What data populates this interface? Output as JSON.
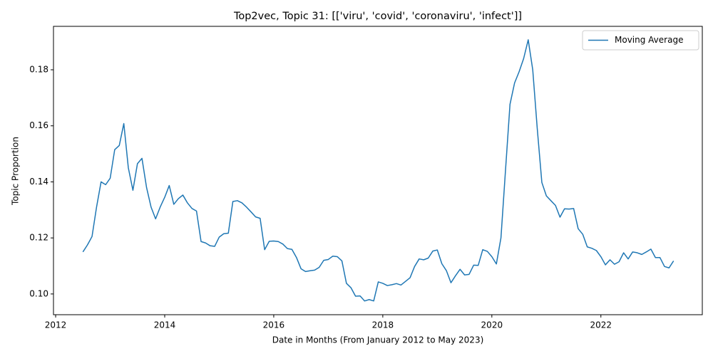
{
  "chart_data": {
    "type": "line",
    "title": "Top2vec, Topic 31: [['viru', 'covid', 'coronaviru', 'infect']]",
    "x_label": "Date in Months (From January 2012 to May 2023)",
    "y_label": "Topic Proportion",
    "x": [
      2012.5,
      2012.583,
      2012.667,
      2012.75,
      2012.833,
      2012.917,
      2013,
      2013.083,
      2013.167,
      2013.25,
      2013.333,
      2013.417,
      2013.5,
      2013.583,
      2013.667,
      2013.75,
      2013.833,
      2013.917,
      2014,
      2014.083,
      2014.167,
      2014.25,
      2014.333,
      2014.417,
      2014.5,
      2014.583,
      2014.667,
      2014.75,
      2014.833,
      2014.917,
      2015,
      2015.083,
      2015.167,
      2015.25,
      2015.333,
      2015.417,
      2015.5,
      2015.583,
      2015.667,
      2015.75,
      2015.833,
      2015.917,
      2016,
      2016.083,
      2016.167,
      2016.25,
      2016.333,
      2016.417,
      2016.5,
      2016.583,
      2016.667,
      2016.75,
      2016.833,
      2016.917,
      2017,
      2017.083,
      2017.167,
      2017.25,
      2017.333,
      2017.417,
      2017.5,
      2017.583,
      2017.667,
      2017.75,
      2017.833,
      2017.917,
      2018,
      2018.083,
      2018.167,
      2018.25,
      2018.333,
      2018.417,
      2018.5,
      2018.583,
      2018.667,
      2018.75,
      2018.833,
      2018.917,
      2019,
      2019.083,
      2019.167,
      2019.25,
      2019.333,
      2019.417,
      2019.5,
      2019.583,
      2019.667,
      2019.75,
      2019.833,
      2019.917,
      2020,
      2020.083,
      2020.167,
      2020.25,
      2020.333,
      2020.417,
      2020.5,
      2020.583,
      2020.667,
      2020.75,
      2020.833,
      2020.917,
      2021,
      2021.083,
      2021.167,
      2021.25,
      2021.333,
      2021.417,
      2021.5,
      2021.583,
      2021.667,
      2021.75,
      2021.833,
      2021.917,
      2022,
      2022.083,
      2022.167,
      2022.25,
      2022.333,
      2022.417,
      2022.5,
      2022.583,
      2022.667,
      2022.75,
      2022.833,
      2022.917,
      2023,
      2023.083,
      2023.167,
      2023.25,
      2023.333
    ],
    "series": [
      {
        "name": "Moving Average",
        "color": "#1f77b4",
        "values": [
          0.115,
          0.1175,
          0.1205,
          0.131,
          0.14,
          0.139,
          0.1413,
          0.1515,
          0.153,
          0.1608,
          0.145,
          0.137,
          0.1465,
          0.1484,
          0.138,
          0.131,
          0.1268,
          0.131,
          0.1345,
          0.1387,
          0.132,
          0.134,
          0.1353,
          0.1325,
          0.1305,
          0.1296,
          0.1187,
          0.1182,
          0.1172,
          0.117,
          0.1203,
          0.1215,
          0.1217,
          0.133,
          0.1333,
          0.1325,
          0.131,
          0.1293,
          0.1275,
          0.127,
          0.1158,
          0.1188,
          0.1189,
          0.1187,
          0.1178,
          0.1162,
          0.1159,
          0.113,
          0.109,
          0.108,
          0.1083,
          0.1085,
          0.1095,
          0.112,
          0.1123,
          0.1135,
          0.1133,
          0.1118,
          0.1038,
          0.1022,
          0.0992,
          0.0993,
          0.0975,
          0.098,
          0.0975,
          0.1043,
          0.1038,
          0.103,
          0.1033,
          0.1037,
          0.1032,
          0.1045,
          0.1058,
          0.1098,
          0.1125,
          0.1122,
          0.1128,
          0.1153,
          0.1157,
          0.1108,
          0.1083,
          0.104,
          0.1065,
          0.1088,
          0.1068,
          0.107,
          0.1103,
          0.1102,
          0.1158,
          0.1152,
          0.1133,
          0.1107,
          0.12,
          0.144,
          0.1677,
          0.1753,
          0.1793,
          0.184,
          0.1907,
          0.18,
          0.159,
          0.1398,
          0.135,
          0.1333,
          0.1316,
          0.1274,
          0.1304,
          0.1303,
          0.1305,
          0.1233,
          0.1213,
          0.1168,
          0.1163,
          0.1155,
          0.1133,
          0.1104,
          0.1122,
          0.1106,
          0.1115,
          0.1147,
          0.1125,
          0.115,
          0.1147,
          0.1141,
          0.115,
          0.116,
          0.113,
          0.113,
          0.1098,
          0.1093,
          0.1118
        ]
      }
    ],
    "xlim": [
      2011.96,
      2023.86
    ],
    "ylim": [
      0.0926,
      0.1955
    ],
    "xticks": [
      2012,
      2014,
      2016,
      2018,
      2020,
      2022
    ],
    "yticks": [
      {
        "value": 0.1,
        "label": "0.10"
      },
      {
        "value": 0.12,
        "label": "0.12"
      },
      {
        "value": 0.14,
        "label": "0.14"
      },
      {
        "value": 0.16,
        "label": "0.16"
      },
      {
        "value": 0.18,
        "label": "0.18"
      }
    ],
    "legend": "upper right"
  }
}
